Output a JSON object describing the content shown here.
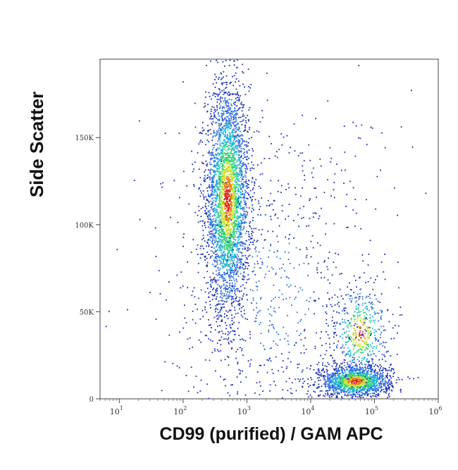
{
  "chart_data": {
    "type": "scatter",
    "title": "",
    "xlabel": "CD99 (purified) / GAM APC",
    "ylabel": "Side Scatter",
    "x_scale": "log",
    "xlim": [
      5,
      1000000
    ],
    "ylim": [
      0,
      195000
    ],
    "x_ticks": [
      {
        "value": 10,
        "base": "10",
        "exp": "1"
      },
      {
        "value": 100,
        "base": "10",
        "exp": "2"
      },
      {
        "value": 1000,
        "base": "10",
        "exp": "3"
      },
      {
        "value": 10000,
        "base": "10",
        "exp": "4"
      },
      {
        "value": 100000,
        "base": "10",
        "exp": "5"
      },
      {
        "value": 1000000,
        "base": "10",
        "exp": "6"
      }
    ],
    "y_ticks": [
      {
        "value": 0,
        "label": "0"
      },
      {
        "value": 50000,
        "label": "50K"
      },
      {
        "value": 100000,
        "label": "100K"
      },
      {
        "value": 150000,
        "label": "150K"
      }
    ],
    "grid": false,
    "density_colors": [
      "#1c2fb5",
      "#2f6ee0",
      "#1fb5d6",
      "#33d17a",
      "#c9e02b",
      "#f07a1a",
      "#d8231c"
    ],
    "populations": [
      {
        "x_center": 500,
        "y_center": 115000,
        "x_spread_log10": 0.17,
        "y_spread": 33000,
        "points": 3400
      },
      {
        "x_center": 50000,
        "y_center": 10000,
        "x_spread_log10": 0.28,
        "y_spread": 4500,
        "points": 1500
      },
      {
        "x_center": 60000,
        "y_center": 38000,
        "x_spread_log10": 0.22,
        "y_spread": 14000,
        "points": 500
      },
      {
        "x_center": 3000,
        "y_center": 60000,
        "x_spread_log10": 0.9,
        "y_spread": 55000,
        "points": 900
      }
    ]
  }
}
